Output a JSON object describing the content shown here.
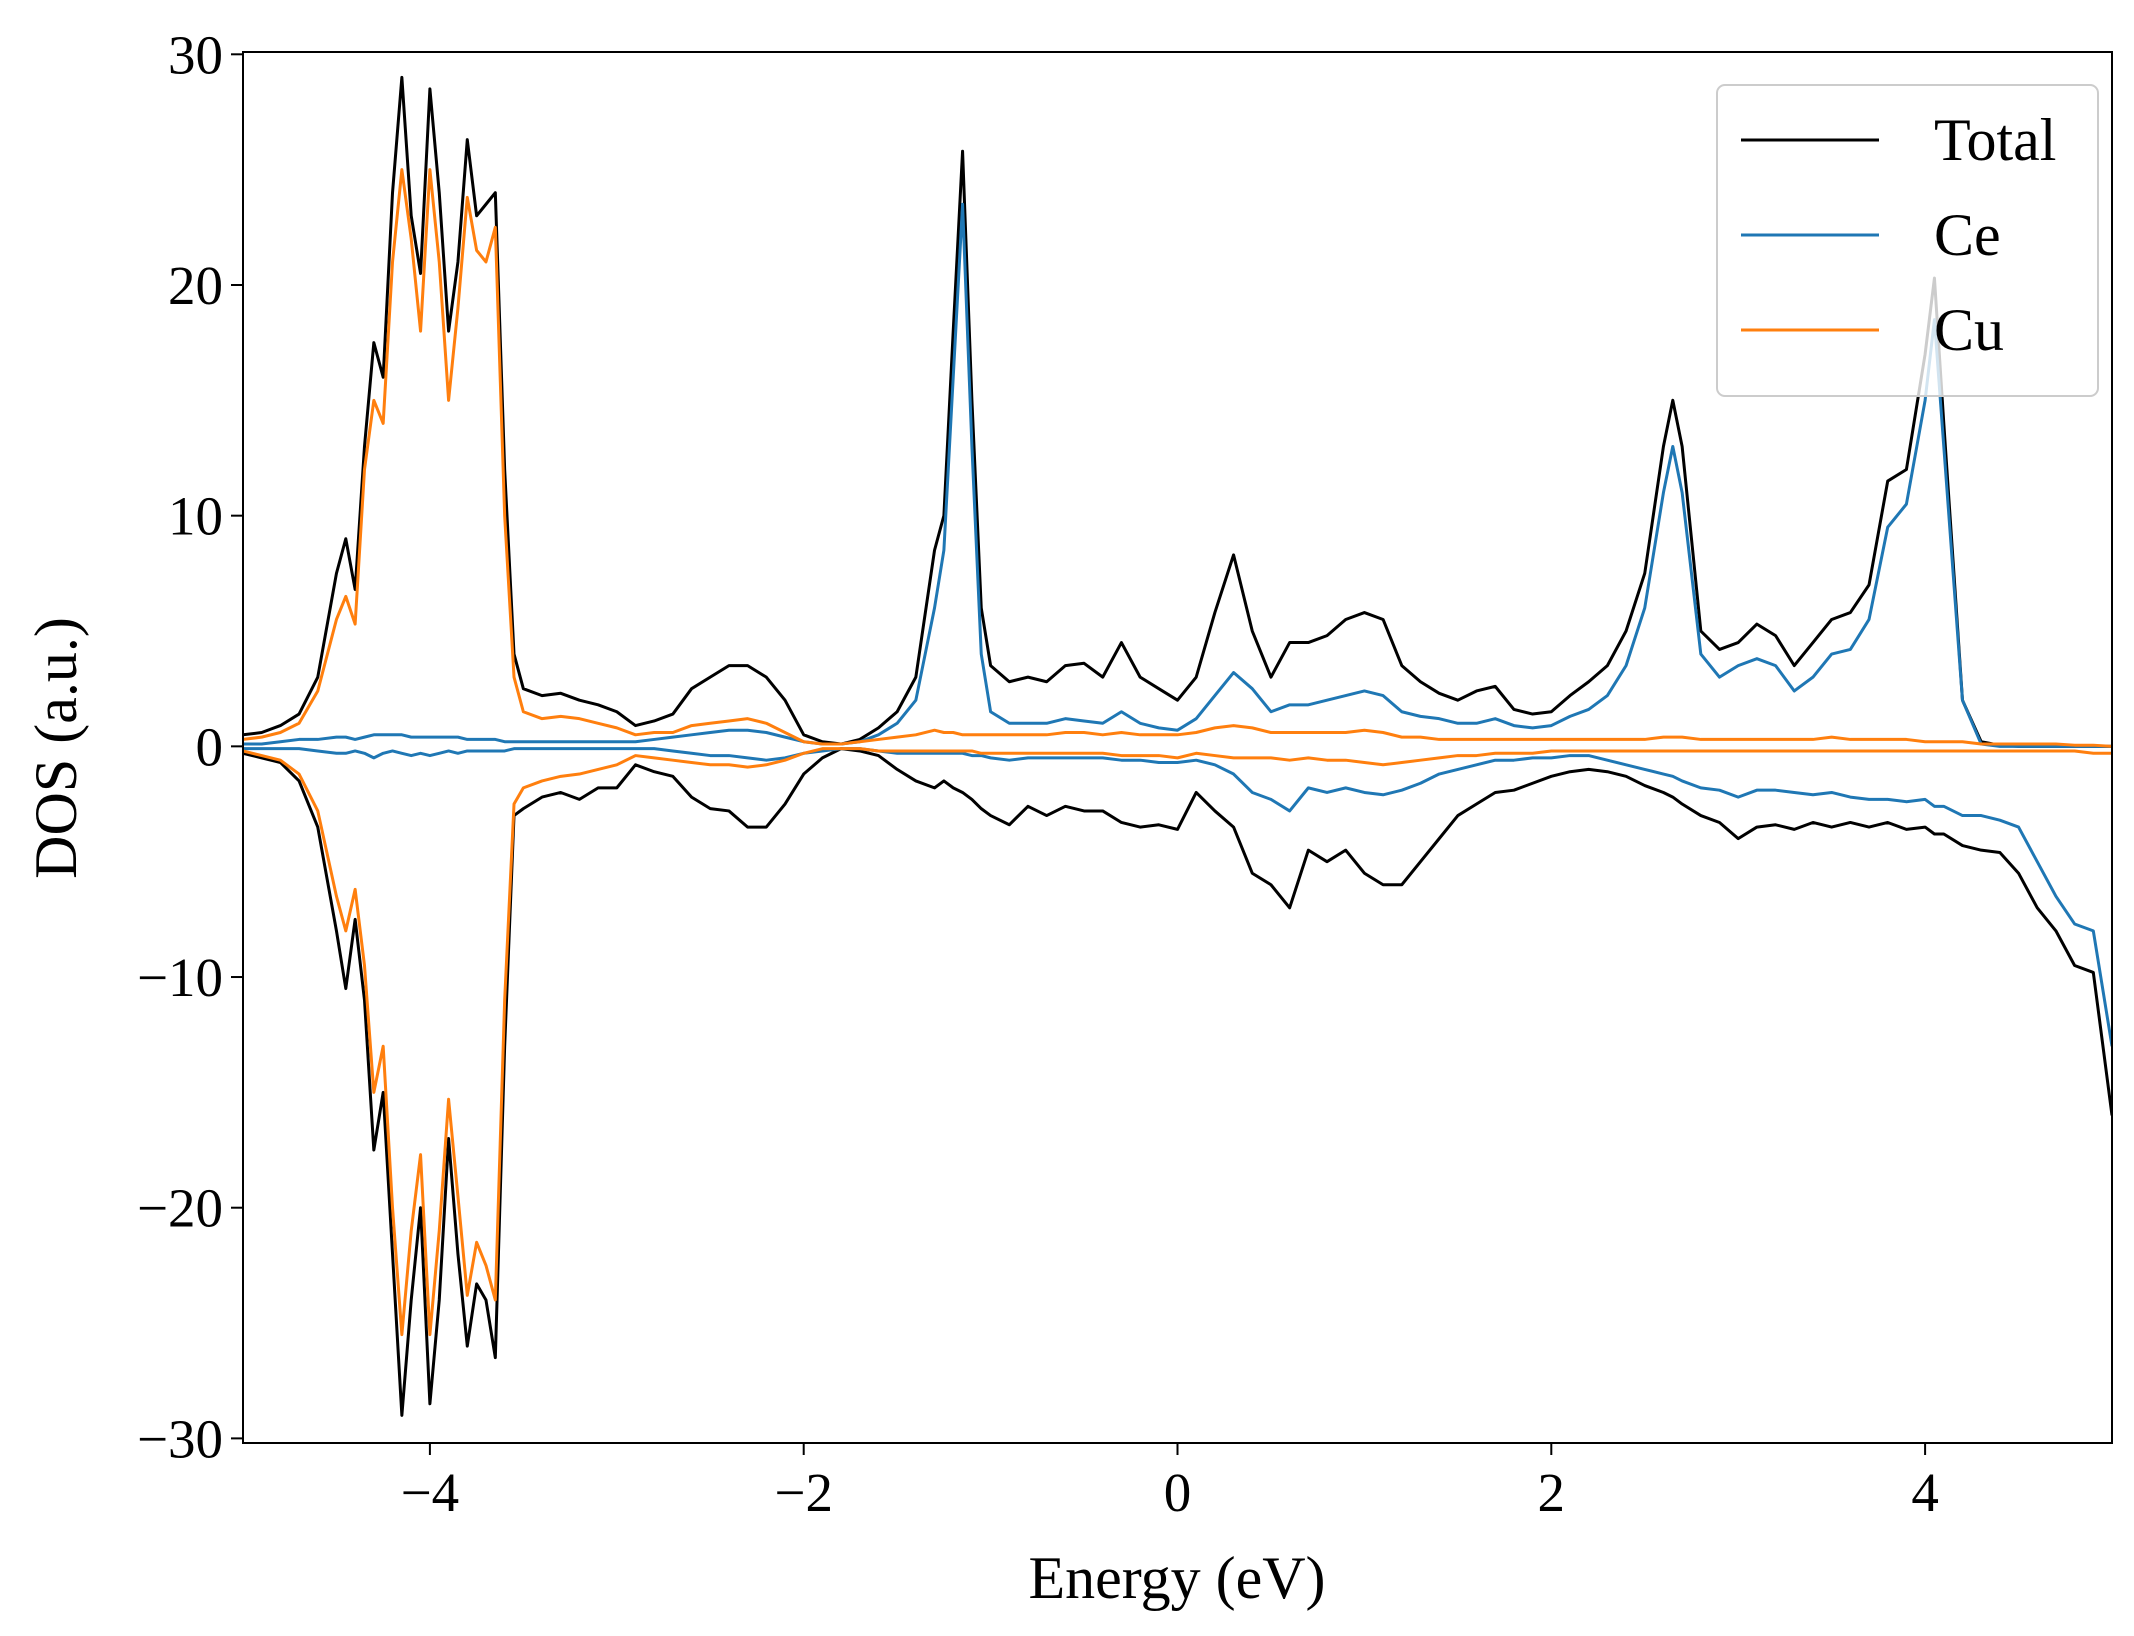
{
  "chart_data": {
    "type": "line",
    "xlabel": "Energy (eV)",
    "ylabel": "DOS (a.u.)",
    "xlim": [
      -5,
      5
    ],
    "ylim": [
      -30.2,
      30.1
    ],
    "xticks": [
      {
        "value": -4,
        "label": "−4"
      },
      {
        "value": -2,
        "label": "−2"
      },
      0,
      2,
      4
    ],
    "yticks": [
      {
        "value": -30,
        "label": "−30"
      },
      {
        "value": -20,
        "label": "−20"
      },
      {
        "value": -10,
        "label": "−10"
      },
      0,
      10,
      20,
      30
    ],
    "legend": "upper right",
    "x": [
      -5,
      -4.9,
      -4.8,
      -4.7,
      -4.6,
      -4.5,
      -4.45,
      -4.4,
      -4.35,
      -4.3,
      -4.25,
      -4.2,
      -4.15,
      -4.1,
      -4.05,
      -4.0,
      -3.95,
      -3.9,
      -3.85,
      -3.8,
      -3.75,
      -3.7,
      -3.65,
      -3.6,
      -3.55,
      -3.5,
      -3.4,
      -3.3,
      -3.2,
      -3.1,
      -3.0,
      -2.9,
      -2.8,
      -2.7,
      -2.6,
      -2.5,
      -2.4,
      -2.3,
      -2.2,
      -2.1,
      -2.0,
      -1.9,
      -1.8,
      -1.7,
      -1.6,
      -1.5,
      -1.4,
      -1.3,
      -1.25,
      -1.2,
      -1.15,
      -1.1,
      -1.05,
      -1.0,
      -0.9,
      -0.8,
      -0.7,
      -0.6,
      -0.5,
      -0.4,
      -0.3,
      -0.2,
      -0.1,
      0,
      0.1,
      0.2,
      0.3,
      0.4,
      0.5,
      0.6,
      0.7,
      0.8,
      0.9,
      1.0,
      1.1,
      1.2,
      1.3,
      1.4,
      1.5,
      1.6,
      1.7,
      1.8,
      1.9,
      2.0,
      2.1,
      2.2,
      2.3,
      2.4,
      2.5,
      2.6,
      2.65,
      2.7,
      2.8,
      2.9,
      3.0,
      3.1,
      3.2,
      3.3,
      3.4,
      3.5,
      3.6,
      3.7,
      3.8,
      3.9,
      4.0,
      4.05,
      4.1,
      4.2,
      4.3,
      4.4,
      4.5,
      4.6,
      4.7,
      4.8,
      4.9,
      5.0
    ],
    "series": [
      {
        "name": "Total",
        "color": "#000000",
        "values": [
          0.5,
          0.6,
          0.9,
          1.4,
          3.0,
          7.5,
          9.0,
          6.8,
          13,
          17.5,
          16,
          24,
          29,
          23,
          20.5,
          28.5,
          24,
          18,
          21,
          26.3,
          23,
          23.5,
          24,
          12,
          4,
          2.5,
          2.2,
          2.3,
          2.0,
          1.8,
          1.5,
          0.9,
          1.1,
          1.4,
          2.5,
          3.0,
          3.5,
          3.5,
          3.0,
          2.0,
          0.5,
          0.2,
          0.1,
          0.3,
          0.8,
          1.5,
          3,
          8.5,
          10,
          18,
          25.8,
          15,
          6,
          3.5,
          2.8,
          3.0,
          2.8,
          3.5,
          3.6,
          3.0,
          4.5,
          3.0,
          2.5,
          2.0,
          3.0,
          5.8,
          8.3,
          5.0,
          3.0,
          4.5,
          4.5,
          4.8,
          5.5,
          5.8,
          5.5,
          3.5,
          2.8,
          2.3,
          2.0,
          2.4,
          2.6,
          1.6,
          1.4,
          1.5,
          2.2,
          2.8,
          3.5,
          5,
          7.5,
          13,
          15,
          13,
          5,
          4.2,
          4.5,
          5.3,
          4.8,
          3.5,
          4.5,
          5.5,
          5.8,
          7,
          11.5,
          12,
          17,
          20.3,
          14,
          2,
          0.2,
          0.05,
          0,
          0,
          0,
          0,
          0,
          0
        ],
        "values_down": [
          -0.3,
          -0.5,
          -0.7,
          -1.5,
          -3.5,
          -8,
          -10.5,
          -7.5,
          -11,
          -17.5,
          -15,
          -22,
          -29,
          -24,
          -20,
          -28.5,
          -24,
          -17,
          -22,
          -26,
          -23.3,
          -24,
          -26.5,
          -13,
          -3,
          -2.7,
          -2.2,
          -2.0,
          -2.3,
          -1.8,
          -1.8,
          -0.8,
          -1.1,
          -1.3,
          -2.2,
          -2.7,
          -2.8,
          -3.5,
          -3.5,
          -2.5,
          -1.2,
          -0.5,
          -0.1,
          -0.2,
          -0.4,
          -1.0,
          -1.5,
          -1.8,
          -1.5,
          -1.8,
          -2.0,
          -2.3,
          -2.7,
          -3.0,
          -3.4,
          -2.6,
          -3.0,
          -2.6,
          -2.8,
          -2.8,
          -3.3,
          -3.5,
          -3.4,
          -3.6,
          -2.0,
          -2.8,
          -3.5,
          -5.5,
          -6.0,
          -7.0,
          -4.5,
          -5.0,
          -4.5,
          -5.5,
          -6.0,
          -6.0,
          -5.0,
          -4.0,
          -3.0,
          -2.5,
          -2.0,
          -1.9,
          -1.6,
          -1.3,
          -1.1,
          -1.0,
          -1.1,
          -1.3,
          -1.7,
          -2.0,
          -2.2,
          -2.5,
          -3.0,
          -3.3,
          -4.0,
          -3.5,
          -3.4,
          -3.6,
          -3.3,
          -3.5,
          -3.3,
          -3.5,
          -3.3,
          -3.6,
          -3.5,
          -3.8,
          -3.8,
          -4.3,
          -4.5,
          -4.6,
          -5.5,
          -7.0,
          -8.0,
          -9.5,
          -9.8,
          -16
        ]
      },
      {
        "name": "Ce",
        "color": "#1f77b4",
        "values": [
          0.1,
          0.1,
          0.2,
          0.3,
          0.3,
          0.4,
          0.4,
          0.3,
          0.4,
          0.5,
          0.5,
          0.5,
          0.5,
          0.4,
          0.4,
          0.4,
          0.4,
          0.4,
          0.4,
          0.3,
          0.3,
          0.3,
          0.3,
          0.2,
          0.2,
          0.2,
          0.2,
          0.2,
          0.2,
          0.2,
          0.2,
          0.2,
          0.3,
          0.4,
          0.5,
          0.6,
          0.7,
          0.7,
          0.6,
          0.4,
          0.2,
          0.1,
          0.1,
          0.2,
          0.5,
          1.0,
          2.0,
          6,
          8.5,
          16,
          23.5,
          13,
          4,
          1.5,
          1.0,
          1.0,
          1.0,
          1.2,
          1.1,
          1.0,
          1.5,
          1.0,
          0.8,
          0.7,
          1.2,
          2.2,
          3.2,
          2.5,
          1.5,
          1.8,
          1.8,
          2.0,
          2.2,
          2.4,
          2.2,
          1.5,
          1.3,
          1.2,
          1.0,
          1.0,
          1.2,
          0.9,
          0.8,
          0.9,
          1.3,
          1.6,
          2.2,
          3.5,
          6,
          11,
          13,
          11,
          4,
          3.0,
          3.5,
          3.8,
          3.5,
          2.4,
          3.0,
          4.0,
          4.2,
          5.5,
          9.5,
          10.5,
          15,
          18.5,
          13,
          2,
          0.1,
          0,
          0,
          0,
          0,
          0,
          0,
          0
        ],
        "values_down": [
          -0.1,
          -0.1,
          -0.1,
          -0.1,
          -0.2,
          -0.3,
          -0.3,
          -0.2,
          -0.3,
          -0.5,
          -0.3,
          -0.2,
          -0.3,
          -0.4,
          -0.3,
          -0.4,
          -0.3,
          -0.2,
          -0.3,
          -0.2,
          -0.2,
          -0.2,
          -0.2,
          -0.2,
          -0.1,
          -0.1,
          -0.1,
          -0.1,
          -0.1,
          -0.1,
          -0.1,
          -0.1,
          -0.1,
          -0.2,
          -0.3,
          -0.4,
          -0.4,
          -0.5,
          -0.6,
          -0.5,
          -0.3,
          -0.2,
          -0.1,
          -0.1,
          -0.2,
          -0.3,
          -0.3,
          -0.3,
          -0.3,
          -0.3,
          -0.3,
          -0.4,
          -0.4,
          -0.5,
          -0.6,
          -0.5,
          -0.5,
          -0.5,
          -0.5,
          -0.5,
          -0.6,
          -0.6,
          -0.7,
          -0.7,
          -0.6,
          -0.8,
          -1.2,
          -2.0,
          -2.3,
          -2.8,
          -1.8,
          -2.0,
          -1.8,
          -2.0,
          -2.1,
          -1.9,
          -1.6,
          -1.2,
          -1.0,
          -0.8,
          -0.6,
          -0.6,
          -0.5,
          -0.5,
          -0.4,
          -0.4,
          -0.6,
          -0.8,
          -1.0,
          -1.2,
          -1.3,
          -1.5,
          -1.8,
          -1.9,
          -2.2,
          -1.9,
          -1.9,
          -2.0,
          -2.1,
          -2.0,
          -2.2,
          -2.3,
          -2.3,
          -2.4,
          -2.3,
          -2.6,
          -2.6,
          -3.0,
          -3.0,
          -3.2,
          -3.5,
          -5.0,
          -6.5,
          -7.7,
          -8.0,
          -13
        ]
      },
      {
        "name": "Cu",
        "color": "#ff7f0e",
        "values": [
          0.3,
          0.4,
          0.6,
          1.0,
          2.4,
          5.5,
          6.5,
          5.3,
          12,
          15,
          14,
          21,
          25,
          22,
          18,
          25,
          21,
          15,
          19,
          23.8,
          21.5,
          21,
          22.5,
          10,
          3,
          1.5,
          1.2,
          1.3,
          1.2,
          1.0,
          0.8,
          0.5,
          0.6,
          0.6,
          0.9,
          1.0,
          1.1,
          1.2,
          1.0,
          0.6,
          0.2,
          0.1,
          0.1,
          0.2,
          0.3,
          0.4,
          0.5,
          0.7,
          0.6,
          0.6,
          0.5,
          0.5,
          0.5,
          0.5,
          0.5,
          0.5,
          0.5,
          0.6,
          0.6,
          0.5,
          0.6,
          0.5,
          0.5,
          0.5,
          0.6,
          0.8,
          0.9,
          0.8,
          0.6,
          0.6,
          0.6,
          0.6,
          0.6,
          0.7,
          0.6,
          0.4,
          0.4,
          0.3,
          0.3,
          0.3,
          0.3,
          0.3,
          0.3,
          0.3,
          0.3,
          0.3,
          0.3,
          0.3,
          0.3,
          0.4,
          0.4,
          0.4,
          0.3,
          0.3,
          0.3,
          0.3,
          0.3,
          0.3,
          0.3,
          0.4,
          0.3,
          0.3,
          0.3,
          0.3,
          0.2,
          0.2,
          0.2,
          0.2,
          0.1,
          0.1,
          0.1,
          0.1,
          0.1,
          0.05,
          0.05,
          0
        ],
        "values_down": [
          -0.2,
          -0.4,
          -0.6,
          -1.2,
          -2.8,
          -6.5,
          -8,
          -6.2,
          -9.5,
          -15,
          -13,
          -20,
          -25.5,
          -21,
          -17.7,
          -25.5,
          -21,
          -15.3,
          -19.5,
          -23.8,
          -21.5,
          -22.5,
          -24,
          -11,
          -2.5,
          -1.8,
          -1.5,
          -1.3,
          -1.2,
          -1.0,
          -0.8,
          -0.4,
          -0.5,
          -0.6,
          -0.7,
          -0.8,
          -0.8,
          -0.9,
          -0.8,
          -0.6,
          -0.3,
          -0.1,
          -0.1,
          -0.1,
          -0.2,
          -0.2,
          -0.2,
          -0.2,
          -0.2,
          -0.2,
          -0.2,
          -0.2,
          -0.3,
          -0.3,
          -0.3,
          -0.3,
          -0.3,
          -0.3,
          -0.3,
          -0.3,
          -0.4,
          -0.4,
          -0.4,
          -0.5,
          -0.3,
          -0.4,
          -0.5,
          -0.5,
          -0.5,
          -0.6,
          -0.5,
          -0.6,
          -0.6,
          -0.7,
          -0.8,
          -0.7,
          -0.6,
          -0.5,
          -0.4,
          -0.4,
          -0.3,
          -0.3,
          -0.3,
          -0.2,
          -0.2,
          -0.2,
          -0.2,
          -0.2,
          -0.2,
          -0.2,
          -0.2,
          -0.2,
          -0.2,
          -0.2,
          -0.2,
          -0.2,
          -0.2,
          -0.2,
          -0.2,
          -0.2,
          -0.2,
          -0.2,
          -0.2,
          -0.2,
          -0.2,
          -0.2,
          -0.2,
          -0.2,
          -0.2,
          -0.2,
          -0.2,
          -0.2,
          -0.2,
          -0.2,
          -0.3,
          -0.3
        ]
      }
    ]
  }
}
